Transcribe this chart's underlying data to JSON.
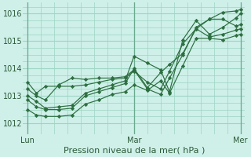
{
  "title": "Pression niveau de la mer( hPa )",
  "bg_color": "#cef0e8",
  "grid_color": "#9dd4c4",
  "line_color": "#2d6e40",
  "xtick_labels": [
    "Lun",
    "Mar",
    "Mer"
  ],
  "xtick_positions": [
    0,
    48,
    96
  ],
  "yticks": [
    1012,
    1013,
    1014,
    1015,
    1016
  ],
  "ylim": [
    1011.6,
    1016.4
  ],
  "xlim": [
    -2,
    98
  ],
  "series": [
    [
      0,
      1013.5,
      4,
      1013.1,
      8,
      1013.35,
      14,
      1013.35,
      20,
      1013.35,
      26,
      1013.4,
      32,
      1013.5,
      38,
      1013.6,
      44,
      1013.65,
      48,
      1013.9,
      54,
      1013.5,
      60,
      1013.25,
      64,
      1013.9,
      70,
      1014.9,
      76,
      1015.45,
      82,
      1015.15,
      88,
      1015.25,
      94,
      1015.4,
      96,
      1015.45
    ],
    [
      0,
      1013.0,
      4,
      1012.8,
      8,
      1012.55,
      14,
      1012.6,
      20,
      1012.65,
      26,
      1013.1,
      32,
      1013.25,
      38,
      1013.4,
      44,
      1013.55,
      48,
      1014.45,
      54,
      1014.2,
      60,
      1013.95,
      64,
      1013.15,
      70,
      1015.05,
      76,
      1015.75,
      82,
      1015.25,
      88,
      1015.5,
      94,
      1015.85,
      96,
      1016.0
    ],
    [
      0,
      1012.85,
      4,
      1012.6,
      8,
      1012.5,
      14,
      1012.5,
      20,
      1012.55,
      26,
      1013.0,
      32,
      1013.15,
      38,
      1013.3,
      44,
      1013.45,
      48,
      1014.0,
      54,
      1013.3,
      60,
      1013.85,
      64,
      1014.15,
      70,
      1014.55,
      76,
      1015.45,
      82,
      1015.8,
      88,
      1015.8,
      94,
      1015.55,
      96,
      1015.6
    ],
    [
      0,
      1013.25,
      4,
      1013.0,
      8,
      1012.85,
      14,
      1013.4,
      20,
      1013.65,
      26,
      1013.6,
      32,
      1013.65,
      38,
      1013.65,
      44,
      1013.7,
      48,
      1013.95,
      54,
      1013.25,
      60,
      1013.05,
      64,
      1013.65,
      70,
      1014.5,
      76,
      1015.5,
      82,
      1015.8,
      88,
      1016.05,
      94,
      1016.1,
      96,
      1016.15
    ],
    [
      0,
      1012.5,
      4,
      1012.3,
      8,
      1012.25,
      14,
      1012.25,
      20,
      1012.3,
      26,
      1012.7,
      32,
      1012.85,
      38,
      1013.05,
      44,
      1013.15,
      48,
      1013.4,
      54,
      1013.2,
      60,
      1013.55,
      64,
      1013.1,
      70,
      1014.1,
      76,
      1015.1,
      82,
      1015.1,
      88,
      1015.05,
      94,
      1015.2,
      96,
      1015.25
    ]
  ]
}
